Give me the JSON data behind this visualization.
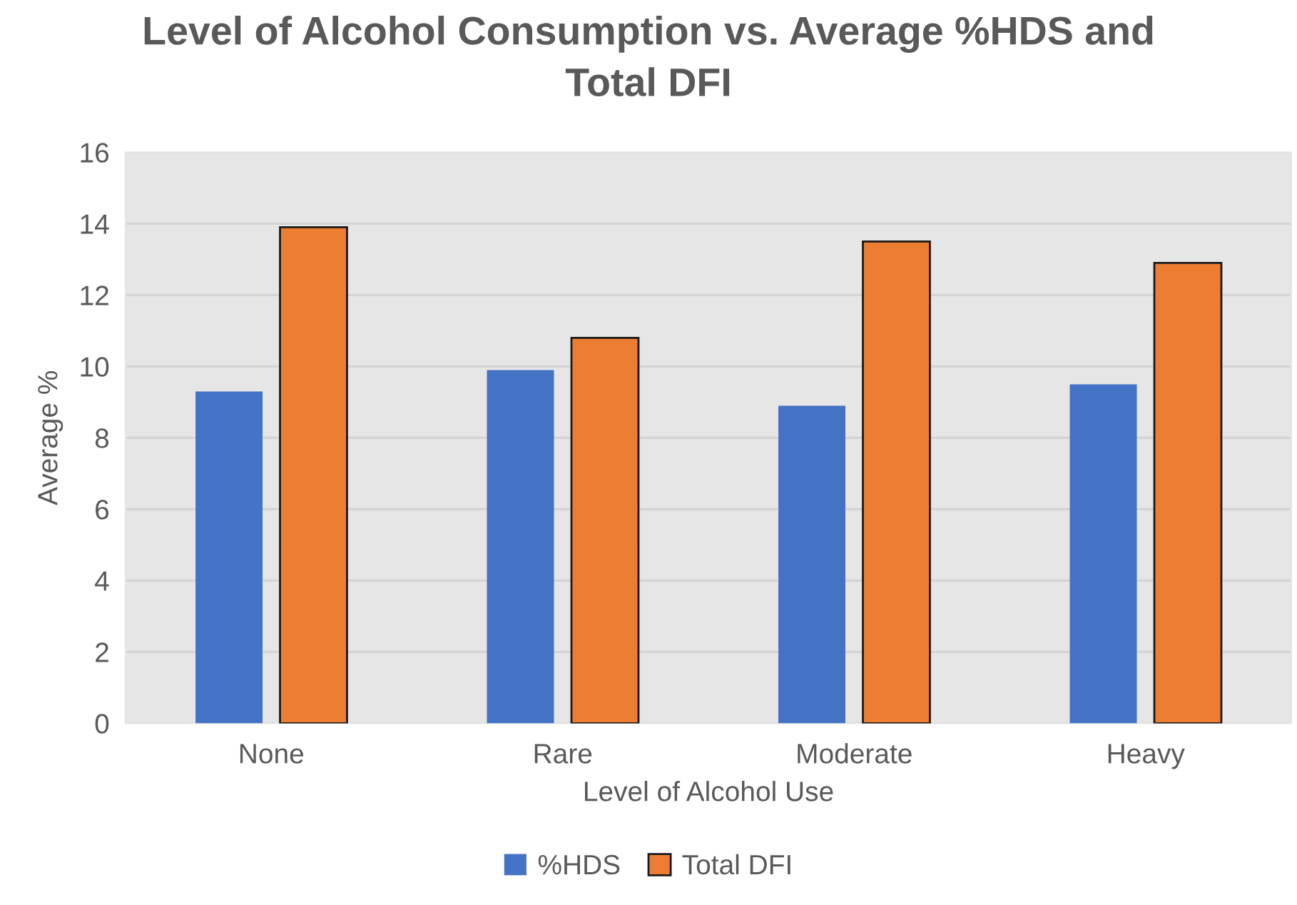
{
  "chart_data": {
    "type": "bar",
    "title": "Level of Alcohol Consumption vs. Average %HDS and\nTotal DFI",
    "xlabel": "Level of Alcohol Use",
    "ylabel": "Average %",
    "categories": [
      "None",
      "Rare",
      "Moderate",
      "Heavy"
    ],
    "series": [
      {
        "name": "%HDS",
        "color": "#4472c4",
        "values": [
          9.3,
          9.9,
          8.9,
          9.5
        ]
      },
      {
        "name": "Total DFI",
        "color": "#ed7d31",
        "values": [
          13.9,
          10.8,
          13.5,
          12.9
        ]
      }
    ],
    "ylim": [
      0,
      16
    ],
    "yticks": [
      0,
      2,
      4,
      6,
      8,
      10,
      12,
      14,
      16
    ],
    "grid": "y",
    "legend": "bottom"
  }
}
